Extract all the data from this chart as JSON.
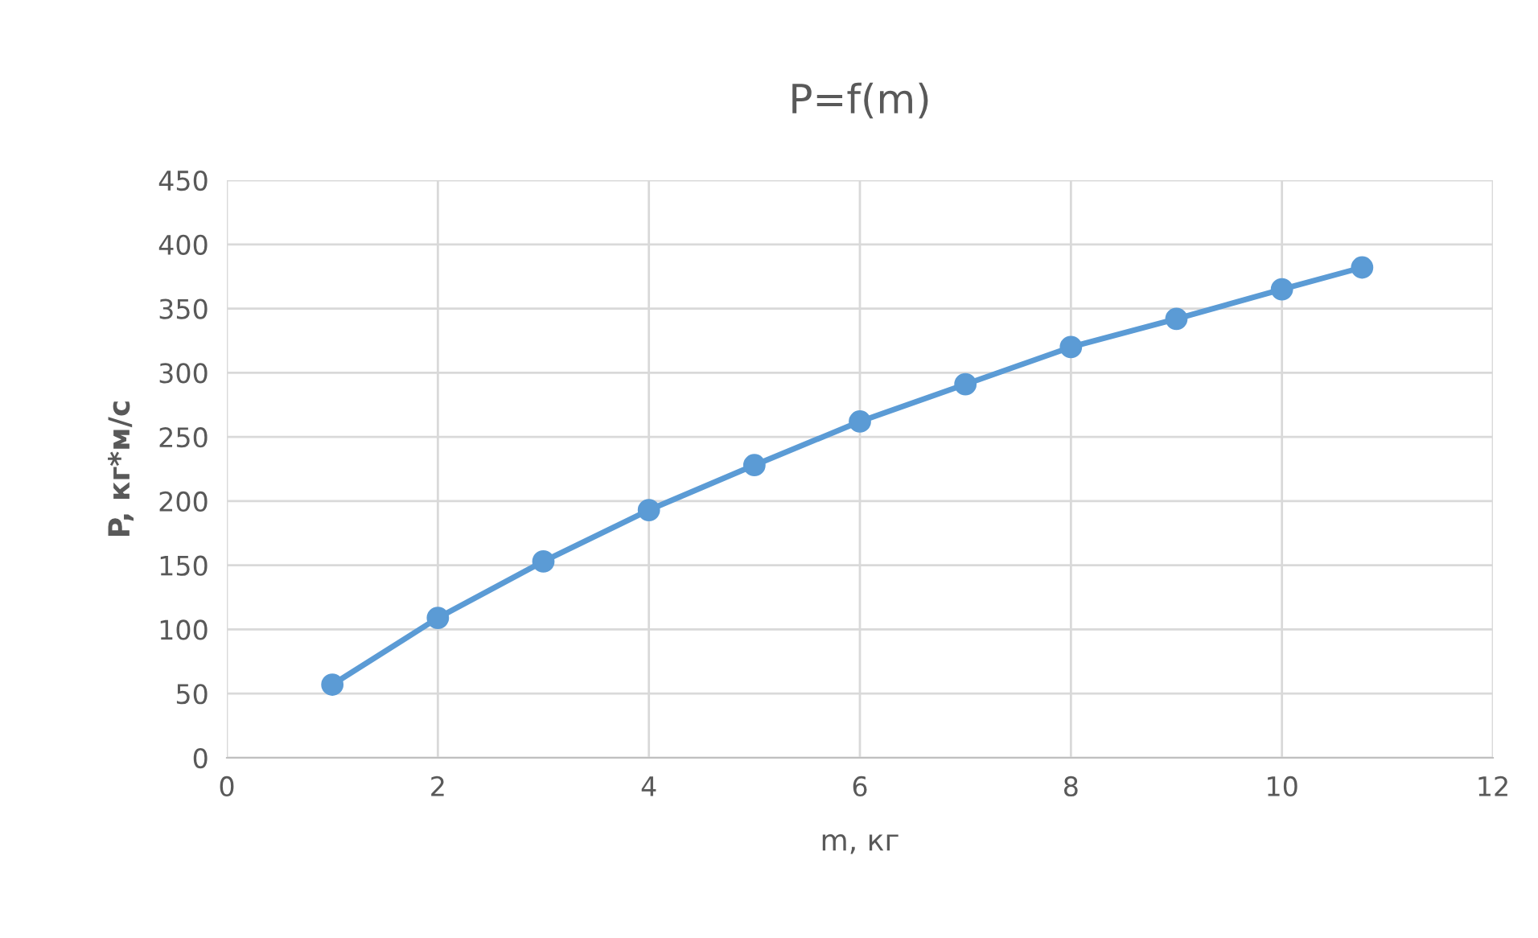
{
  "chart_data": {
    "type": "line",
    "title": "P=f(m)",
    "xlabel": "m, кг",
    "ylabel": "P, кг*м/с",
    "x": [
      1,
      2,
      3,
      4,
      5,
      6,
      7,
      8,
      9,
      10,
      10.76
    ],
    "series": [
      {
        "color": "#5b9bd5",
        "values": [
          57,
          109,
          153,
          193,
          228,
          262,
          291,
          320,
          342,
          365,
          382
        ]
      }
    ],
    "xlim": [
      0,
      12
    ],
    "xticks": [
      0,
      2,
      4,
      6,
      8,
      10,
      12
    ],
    "ylim": [
      0,
      450
    ],
    "yticks": [
      0,
      50,
      100,
      150,
      200,
      250,
      300,
      350,
      400,
      450
    ],
    "grid": true,
    "marker": "circle",
    "line_style": "solid",
    "legend": false
  }
}
